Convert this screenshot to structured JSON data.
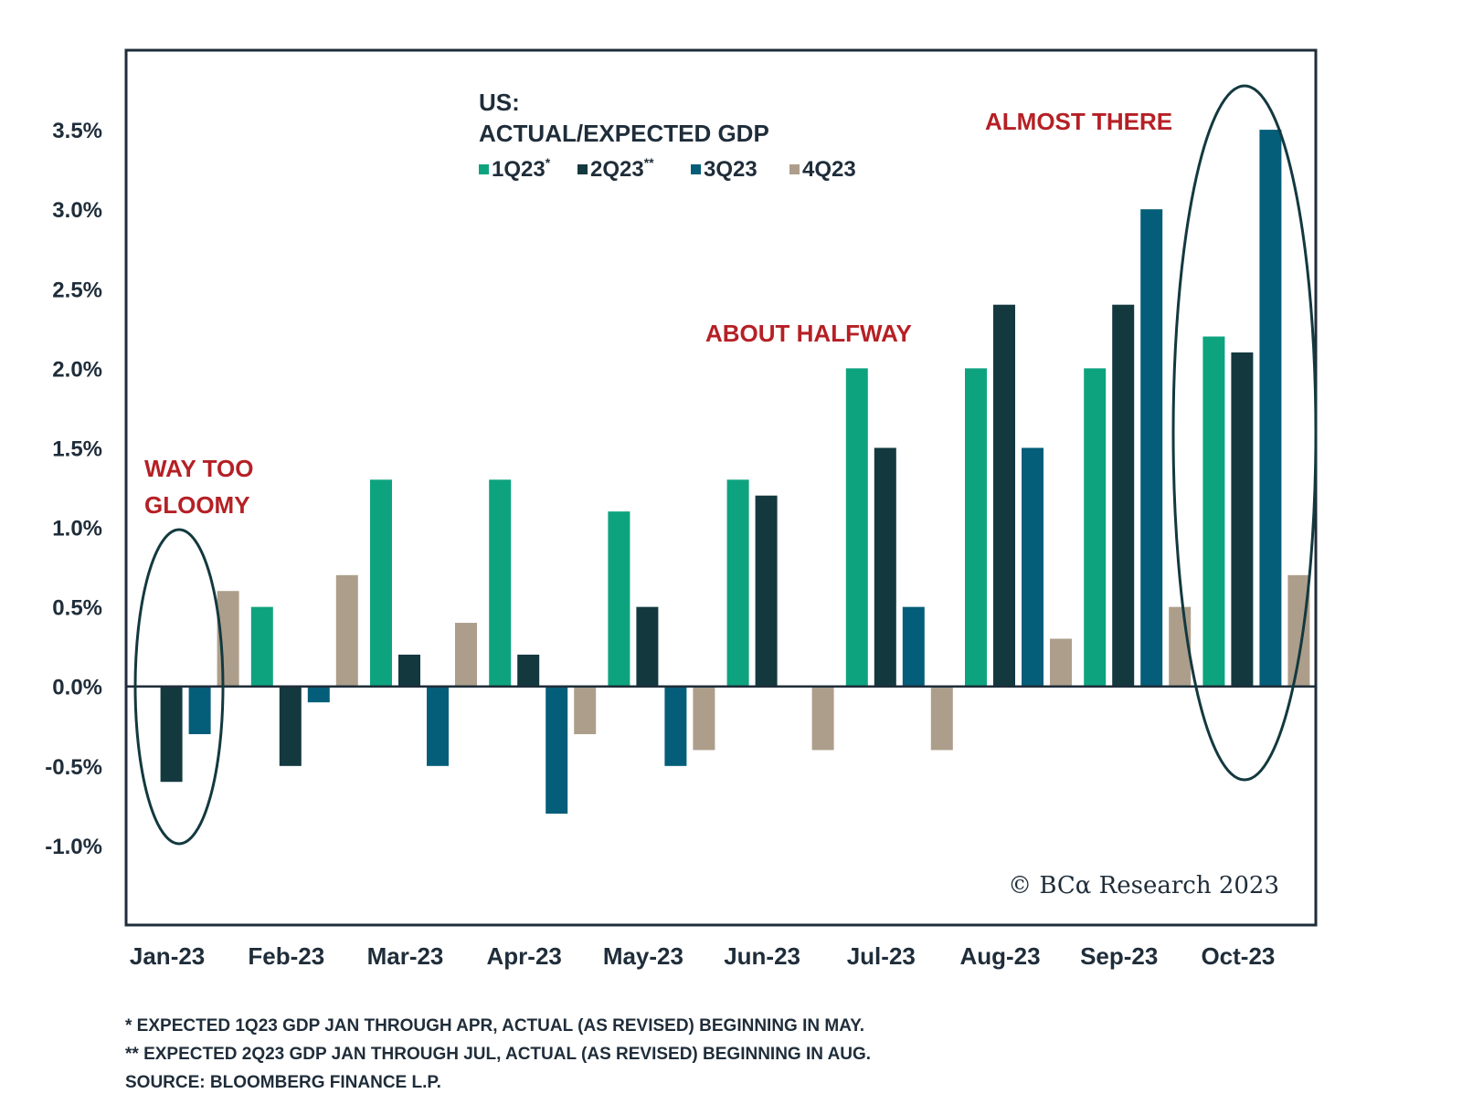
{
  "chart_data": {
    "type": "bar",
    "title": "US:",
    "subtitle": "ACTUAL/EXPECTED GDP",
    "categories": [
      "Jan-23",
      "Feb-23",
      "Mar-23",
      "Apr-23",
      "May-23",
      "Jun-23",
      "Jul-23",
      "Aug-23",
      "Sep-23",
      "Oct-23"
    ],
    "series": [
      {
        "name": "1Q23",
        "marker": "*",
        "color": "#0ea37f",
        "values": [
          0.0,
          0.5,
          1.3,
          1.3,
          1.1,
          1.3,
          2.0,
          2.0,
          2.0,
          2.2
        ]
      },
      {
        "name": "2Q23",
        "marker": "**",
        "color": "#13393f",
        "values": [
          -0.6,
          -0.5,
          0.2,
          0.2,
          0.5,
          1.2,
          1.5,
          2.4,
          2.4,
          2.1
        ]
      },
      {
        "name": "3Q23",
        "marker": "",
        "color": "#055e79",
        "values": [
          -0.3,
          -0.1,
          -0.5,
          -0.8,
          -0.5,
          0.0,
          0.5,
          1.5,
          3.0,
          3.5
        ]
      },
      {
        "name": "4Q23",
        "marker": "",
        "color": "#ad9e8b",
        "values": [
          0.6,
          0.7,
          0.4,
          -0.3,
          -0.4,
          -0.4,
          -0.4,
          0.3,
          0.5,
          0.7
        ]
      }
    ],
    "yticks": [
      3.5,
      3.0,
      2.5,
      2.0,
      1.5,
      1.0,
      0.5,
      0.0,
      -0.5,
      -1.0
    ],
    "ytick_labels": [
      "3.5%",
      "3.0%",
      "2.5%",
      "2.0%",
      "1.5%",
      "1.0%",
      "0.5%",
      "0.0%",
      "-0.5%",
      "-1.0%"
    ],
    "ylim": [
      -1.5,
      4.0
    ],
    "xlabel": "",
    "ylabel": "",
    "annotations": [
      {
        "text_lines": [
          "WAY TOO",
          "GLOOMY"
        ],
        "category": "Jan-23",
        "color": "#b52025"
      },
      {
        "text_lines": [
          "ABOUT HALFWAY"
        ],
        "category": "Jul-23",
        "color": "#b52025"
      },
      {
        "text_lines": [
          "ALMOST THERE"
        ],
        "category": "Oct-23",
        "color": "#b52025"
      }
    ],
    "credit": "© BCα Research 2023"
  },
  "footnotes": [
    "*   EXPECTED 1Q23 GDP JAN THROUGH APR, ACTUAL (AS REVISED) BEGINNING IN MAY.",
    "** EXPECTED 2Q23 GDP JAN THROUGH JUL, ACTUAL (AS REVISED) BEGINNING IN AUG.",
    "SOURCE: BLOOMBERG FINANCE L.P."
  ],
  "colors": {
    "axis": "#1f2d3a",
    "annotation": "#b52025",
    "circle": "#13393f"
  }
}
